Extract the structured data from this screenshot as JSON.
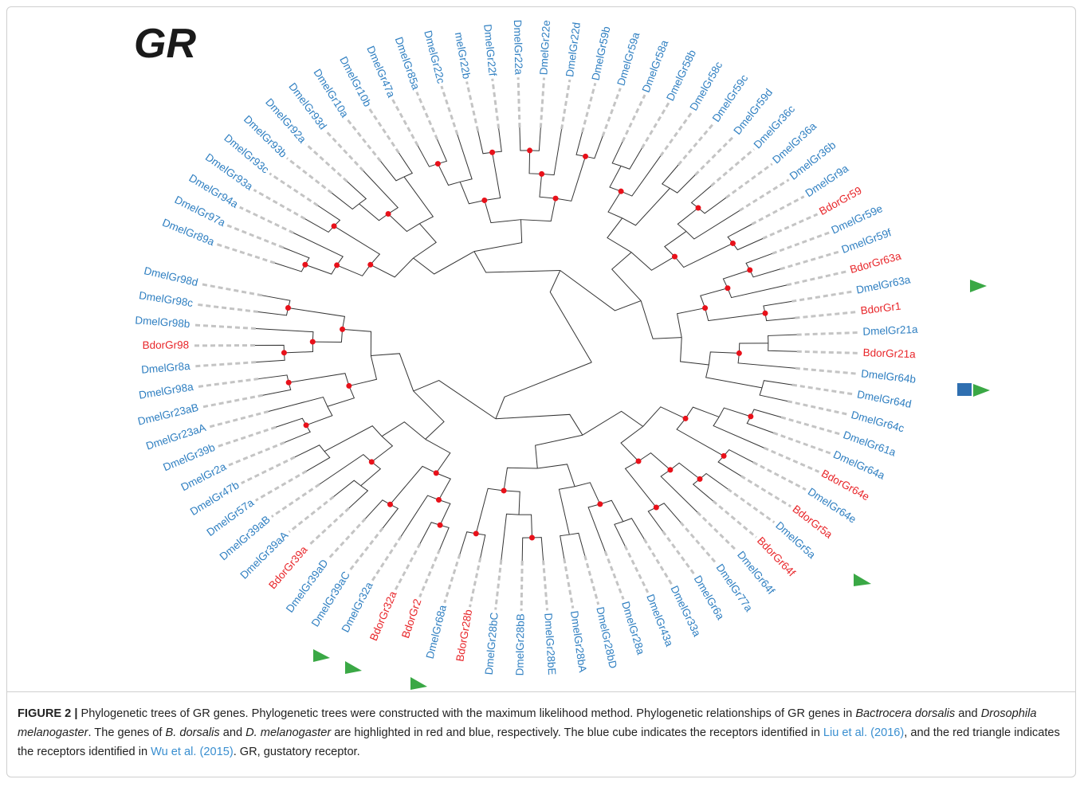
{
  "figure": {
    "title": "GR"
  },
  "tree": {
    "leaves": [
      {
        "label": "DmelGr98d",
        "color": "#2f7fc1"
      },
      {
        "label": "DmelGr98c",
        "color": "#2f7fc1"
      },
      {
        "label": "DmelGr98b",
        "color": "#2f7fc1"
      },
      {
        "label": "BdorGr98",
        "color": "#e8262a"
      },
      {
        "label": "DmelGr8a",
        "color": "#2f7fc1"
      },
      {
        "label": "DmelGr98a",
        "color": "#2f7fc1"
      },
      {
        "label": "DmelGr23aB",
        "color": "#2f7fc1"
      },
      {
        "label": "DmelGr23aA",
        "color": "#2f7fc1"
      },
      {
        "label": "DmelGr39b",
        "color": "#2f7fc1"
      },
      {
        "label": "DmelGr2a",
        "color": "#2f7fc1"
      },
      {
        "label": "DmelGr47b",
        "color": "#2f7fc1"
      },
      {
        "label": "DmelGr57a",
        "color": "#2f7fc1"
      },
      {
        "label": "DmelGr39aB",
        "color": "#2f7fc1"
      },
      {
        "label": "DmelGr39aA",
        "color": "#2f7fc1"
      },
      {
        "label": "BdorGr39a",
        "color": "#e8262a"
      },
      {
        "label": "DmelGr39aD",
        "color": "#2f7fc1"
      },
      {
        "label": "DmelGr39aC",
        "color": "#2f7fc1"
      },
      {
        "label": "DmelGr32a",
        "color": "#2f7fc1"
      },
      {
        "label": "BdorGr32a",
        "color": "#e8262a"
      },
      {
        "label": "BdorGr2",
        "color": "#e8262a"
      },
      {
        "label": "DmelGr68a",
        "color": "#2f7fc1"
      },
      {
        "label": "BdorGr28b",
        "color": "#e8262a"
      },
      {
        "label": "DmelGr28bC",
        "color": "#2f7fc1"
      },
      {
        "label": "DmelGr28bB",
        "color": "#2f7fc1"
      },
      {
        "label": "DmelGr28bE",
        "color": "#2f7fc1"
      },
      {
        "label": "DmelGr28bA",
        "color": "#2f7fc1"
      },
      {
        "label": "DmelGr28bD",
        "color": "#2f7fc1"
      },
      {
        "label": "DmelGr28a",
        "color": "#2f7fc1"
      },
      {
        "label": "DmelGr43a",
        "color": "#2f7fc1"
      },
      {
        "label": "DmelGr33a",
        "color": "#2f7fc1"
      },
      {
        "label": "DmelGr6a",
        "color": "#2f7fc1"
      },
      {
        "label": "DmelGr77a",
        "color": "#2f7fc1"
      },
      {
        "label": "DmelGr64f",
        "color": "#2f7fc1"
      },
      {
        "label": "BdorGr64f",
        "color": "#e8262a"
      },
      {
        "label": "DmelGr5a",
        "color": "#2f7fc1"
      },
      {
        "label": "BdorGr5a",
        "color": "#e8262a"
      },
      {
        "label": "DmelGr64e",
        "color": "#2f7fc1"
      },
      {
        "label": "BdorGr64e",
        "color": "#e8262a"
      },
      {
        "label": "DmelGr64a",
        "color": "#2f7fc1"
      },
      {
        "label": "DmelGr61a",
        "color": "#2f7fc1"
      },
      {
        "label": "DmelGr64c",
        "color": "#2f7fc1"
      },
      {
        "label": "DmelGr64d",
        "color": "#2f7fc1"
      },
      {
        "label": "DmelGr64b",
        "color": "#2f7fc1"
      },
      {
        "label": "BdorGr21a",
        "color": "#e8262a"
      },
      {
        "label": "DmelGr21a",
        "color": "#2f7fc1"
      },
      {
        "label": "BdorGr1",
        "color": "#e8262a"
      },
      {
        "label": "DmelGr63a",
        "color": "#2f7fc1"
      },
      {
        "label": "BdorGr63a",
        "color": "#e8262a"
      },
      {
        "label": "DmelGr59f",
        "color": "#2f7fc1"
      },
      {
        "label": "DmelGr59e",
        "color": "#2f7fc1"
      },
      {
        "label": "BdorGr59",
        "color": "#e8262a"
      },
      {
        "label": "DmelGr9a",
        "color": "#2f7fc1"
      },
      {
        "label": "DmelGr36b",
        "color": "#2f7fc1"
      },
      {
        "label": "DmelGr36a",
        "color": "#2f7fc1"
      },
      {
        "label": "DmelGr36c",
        "color": "#2f7fc1"
      },
      {
        "label": "DmelGr59d",
        "color": "#2f7fc1"
      },
      {
        "label": "DmelGr59c",
        "color": "#2f7fc1"
      },
      {
        "label": "DmelGr58c",
        "color": "#2f7fc1"
      },
      {
        "label": "DmelGr58b",
        "color": "#2f7fc1"
      },
      {
        "label": "DmelGr58a",
        "color": "#2f7fc1"
      },
      {
        "label": "DmelGr59a",
        "color": "#2f7fc1"
      },
      {
        "label": "DmelGr59b",
        "color": "#2f7fc1"
      },
      {
        "label": "DmelGr22d",
        "color": "#2f7fc1"
      },
      {
        "label": "DmelGr22e",
        "color": "#2f7fc1"
      },
      {
        "label": "DmelGr22a",
        "color": "#2f7fc1"
      },
      {
        "label": "DmelGr22f",
        "color": "#2f7fc1"
      },
      {
        "label": "melGr22b",
        "color": "#2f7fc1"
      },
      {
        "label": "DmelGr22c",
        "color": "#2f7fc1"
      },
      {
        "label": "DmelGr85a",
        "color": "#2f7fc1"
      },
      {
        "label": "DmelGr47a",
        "color": "#2f7fc1"
      },
      {
        "label": "DmelGr10b",
        "color": "#2f7fc1"
      },
      {
        "label": "DmelGr10a",
        "color": "#2f7fc1"
      },
      {
        "label": "DmelGr93d",
        "color": "#2f7fc1"
      },
      {
        "label": "DmelGr92a",
        "color": "#2f7fc1"
      },
      {
        "label": "DmelGr93b",
        "color": "#2f7fc1"
      },
      {
        "label": "DmelGr93c",
        "color": "#2f7fc1"
      },
      {
        "label": "DmelGr93a",
        "color": "#2f7fc1"
      },
      {
        "label": "DmelGr94a",
        "color": "#2f7fc1"
      },
      {
        "label": "DmelGr97a",
        "color": "#2f7fc1"
      },
      {
        "label": "DmelGr89a",
        "color": "#2f7fc1"
      }
    ]
  },
  "caption": [
    {
      "text": "FIGURE 2 |",
      "style": "bold"
    },
    {
      "text": " Phylogenetic trees of GR genes. Phylogenetic trees were constructed with the maximum likelihood method. Phylogenetic relationships of GR genes in ",
      "style": "normal"
    },
    {
      "text": "Bactrocera dorsalis",
      "style": "italic"
    },
    {
      "text": " and ",
      "style": "normal"
    },
    {
      "text": "Drosophila melanogaster",
      "style": "italic"
    },
    {
      "text": ". The genes of ",
      "style": "normal"
    },
    {
      "text": "B. dorsalis",
      "style": "italic"
    },
    {
      "text": " and ",
      "style": "normal"
    },
    {
      "text": "D. melanogaster",
      "style": "italic"
    },
    {
      "text": " are highlighted in red and blue, respectively. The blue cube indicates the receptors identified in ",
      "style": "normal"
    },
    {
      "text": "Liu et al. (2016)",
      "style": "link"
    },
    {
      "text": ", and the red triangle indicates the receptors identified in ",
      "style": "normal"
    },
    {
      "text": "Wu et al. (2015)",
      "style": "link"
    },
    {
      "text": ". GR, gustatory receptor.",
      "style": "normal"
    }
  ]
}
